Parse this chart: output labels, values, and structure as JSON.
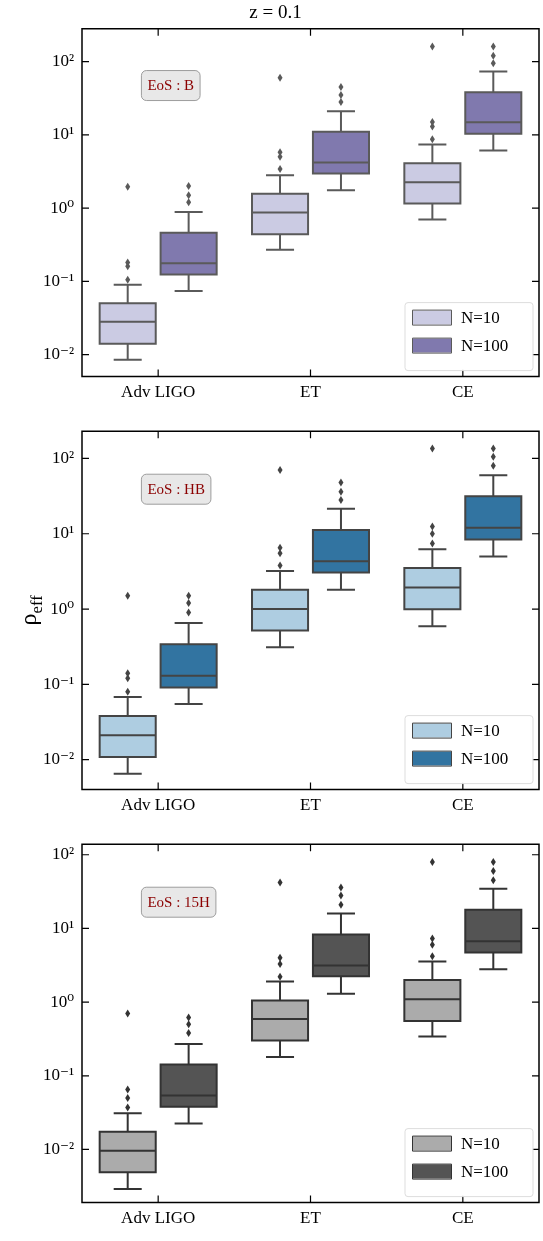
{
  "chart_data": [
    {
      "type": "box",
      "title": "z = 0.1",
      "categories": [
        "Adv LIGO",
        "ET",
        "CE"
      ],
      "log": true,
      "ylim": [
        0.005,
        280
      ],
      "legend": "bottom right",
      "annotations": [
        "EoS : B"
      ],
      "yticks": [
        {
          "value": 0.01,
          "label": "10⁻²"
        },
        {
          "value": 0.1,
          "label": "10⁻¹"
        },
        {
          "value": 1,
          "label": "10⁰"
        },
        {
          "value": 10,
          "label": "10¹"
        },
        {
          "value": 100,
          "label": "10²"
        }
      ],
      "series": [
        {
          "name": "N=10",
          "color": "#cbcbe3",
          "boxes": [
            {
              "low": 0.0085,
              "q1": 0.014,
              "median": 0.028,
              "q3": 0.05,
              "high": 0.09,
              "outliers": [
                0.105,
                0.16,
                0.18,
                1.96
              ]
            },
            {
              "low": 0.27,
              "q1": 0.44,
              "median": 0.87,
              "q3": 1.57,
              "high": 2.8,
              "outliers": [
                3.4,
                5,
                5.8,
                60
              ]
            },
            {
              "low": 0.7,
              "q1": 1.15,
              "median": 2.25,
              "q3": 4.1,
              "high": 7.4,
              "outliers": [
                8.7,
                13,
                15,
                160
              ]
            }
          ]
        },
        {
          "name": "N=100",
          "color": "#8079ae",
          "boxes": [
            {
              "low": 0.074,
              "q1": 0.124,
              "median": 0.177,
              "q3": 0.46,
              "high": 0.88,
              "outliers": [
                1.2,
                1.5,
                2
              ]
            },
            {
              "low": 1.75,
              "q1": 2.97,
              "median": 4.2,
              "q3": 11,
              "high": 21,
              "outliers": [
                28,
                35,
                45
              ]
            },
            {
              "low": 6.1,
              "q1": 10.3,
              "median": 14.8,
              "q3": 38,
              "high": 73,
              "outliers": [
                95,
                120,
                160
              ]
            }
          ]
        }
      ]
    },
    {
      "type": "box",
      "ylabel": "ρ$_{eff}$",
      "categories": [
        "Adv LIGO",
        "ET",
        "CE"
      ],
      "log": true,
      "ylim": [
        0.004,
        230
      ],
      "legend": "bottom right",
      "annotations": [
        "EoS : HB"
      ],
      "yticks": [
        {
          "value": 0.01,
          "label": "10⁻²"
        },
        {
          "value": 0.1,
          "label": "10⁻¹"
        },
        {
          "value": 1,
          "label": "10⁰"
        },
        {
          "value": 10,
          "label": "10¹"
        },
        {
          "value": 100,
          "label": "10²"
        }
      ],
      "series": [
        {
          "name": "N=10",
          "color": "#aecde1",
          "boxes": [
            {
              "low": 0.0065,
              "q1": 0.0108,
              "median": 0.021,
              "q3": 0.038,
              "high": 0.068,
              "outliers": [
                0.08,
                0.12,
                0.14,
                1.5
              ]
            },
            {
              "low": 0.31,
              "q1": 0.52,
              "median": 1,
              "q3": 1.8,
              "high": 3.2,
              "outliers": [
                3.8,
                5.5,
                6.5,
                70
              ]
            },
            {
              "low": 0.59,
              "q1": 0.99,
              "median": 1.93,
              "q3": 3.5,
              "high": 6.2,
              "outliers": [
                7.4,
                10,
                12.5,
                135
              ]
            }
          ]
        },
        {
          "name": "N=100",
          "color": "#3274a1",
          "boxes": [
            {
              "low": 0.055,
              "q1": 0.091,
              "median": 0.13,
              "q3": 0.34,
              "high": 0.65,
              "outliers": [
                0.9,
                1.2,
                1.5
              ]
            },
            {
              "low": 1.8,
              "q1": 3.05,
              "median": 4.3,
              "q3": 11.2,
              "high": 21.5,
              "outliers": [
                28,
                36,
                48
              ]
            },
            {
              "low": 5,
              "q1": 8.4,
              "median": 12,
              "q3": 31.5,
              "high": 60,
              "outliers": [
                80,
                105,
                135
              ]
            }
          ]
        }
      ]
    },
    {
      "type": "box",
      "categories": [
        "Adv LIGO",
        "ET",
        "CE"
      ],
      "log": true,
      "ylim": [
        0.0019,
        139
      ],
      "legend": "bottom right",
      "annotations": [
        "EoS : 15H"
      ],
      "yticks": [
        {
          "value": 0.01,
          "label": "10⁻²"
        },
        {
          "value": 0.1,
          "label": "10⁻¹"
        },
        {
          "value": 1,
          "label": "10⁰"
        },
        {
          "value": 10,
          "label": "10¹"
        },
        {
          "value": 100,
          "label": "10²"
        }
      ],
      "series": [
        {
          "name": "N=10",
          "color": "#ababab",
          "boxes": [
            {
              "low": 0.0029,
              "q1": 0.0049,
              "median": 0.0096,
              "q3": 0.0174,
              "high": 0.031,
              "outliers": [
                0.037,
                0.05,
                0.065,
                0.7
              ]
            },
            {
              "low": 0.18,
              "q1": 0.3,
              "median": 0.59,
              "q3": 1.05,
              "high": 1.9,
              "outliers": [
                2.2,
                3.3,
                4,
                42
              ]
            },
            {
              "low": 0.34,
              "q1": 0.555,
              "median": 1.09,
              "q3": 2,
              "high": 3.55,
              "outliers": [
                4.2,
                6,
                7.3,
                80
              ]
            }
          ]
        },
        {
          "name": "N=100",
          "color": "#545454",
          "boxes": [
            {
              "low": 0.0225,
              "q1": 0.038,
              "median": 0.054,
              "q3": 0.142,
              "high": 0.27,
              "outliers": [
                0.38,
                0.5,
                0.62
              ]
            },
            {
              "low": 1.3,
              "q1": 2.24,
              "median": 3.15,
              "q3": 8.3,
              "high": 16,
              "outliers": [
                21,
                28,
                36
              ]
            },
            {
              "low": 2.8,
              "q1": 4.7,
              "median": 6.7,
              "q3": 17.9,
              "high": 34.5,
              "outliers": [
                45,
                60,
                80
              ]
            }
          ]
        }
      ]
    }
  ]
}
